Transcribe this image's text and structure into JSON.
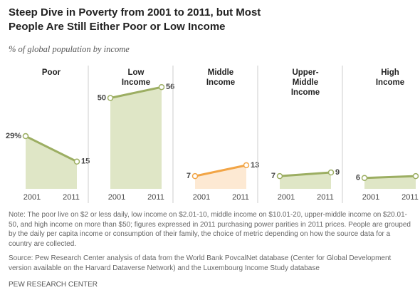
{
  "title": "Steep Dive in Poverty from 2001 to 2011, but Most People Are Still Either Poor or Low Income",
  "subtitle": "% of global population by income",
  "note": "Note: The poor live on $2 or less daily, low income on $2.01-10, middle income on $10.01-20, upper-middle income on $20.01-50, and high income on more than $50; figures expressed in 2011 purchasing power parities in 2011 prices. People are grouped by the daily per capita income or consumption of their family, the choice of metric depending on how the source data for a country are collected.",
  "source": "Source: Pew Research Center analysis of data from the World Bank PovcalNet database (Center for Global Development version available on the Harvard Dataverse Network) and the Luxembourg Income Study database",
  "credit": "PEW RESEARCH CENTER",
  "chart_data": [
    {
      "type": "area",
      "title": "Poor",
      "categories": [
        "2001",
        "2011"
      ],
      "values": [
        29,
        15
      ],
      "value_labels": [
        "29%",
        "15"
      ],
      "color": "#9cae62",
      "fill": "#dfe6c6",
      "ylim": [
        0,
        60
      ]
    },
    {
      "type": "area",
      "title": "Low Income",
      "categories": [
        "2001",
        "2011"
      ],
      "values": [
        50,
        56
      ],
      "color": "#9cae62",
      "fill": "#dfe6c6",
      "ylim": [
        0,
        60
      ]
    },
    {
      "type": "area",
      "title": "Middle Income",
      "categories": [
        "2001",
        "2011"
      ],
      "values": [
        7,
        13
      ],
      "color": "#f2a546",
      "fill": "#fde9d3",
      "ylim": [
        0,
        60
      ]
    },
    {
      "type": "area",
      "title": "Upper-Middle Income",
      "categories": [
        "2001",
        "2011"
      ],
      "values": [
        7,
        9
      ],
      "color": "#9cae62",
      "fill": "#dfe6c6",
      "ylim": [
        0,
        60
      ]
    },
    {
      "type": "area",
      "title": "High Income",
      "categories": [
        "2001",
        "2011"
      ],
      "values": [
        6,
        7
      ],
      "color": "#9cae62",
      "fill": "#dfe6c6",
      "ylim": [
        0,
        60
      ]
    }
  ]
}
